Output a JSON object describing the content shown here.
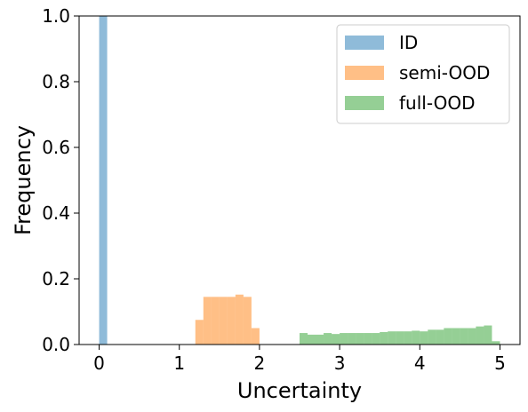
{
  "chart_data": {
    "type": "bar",
    "xlabel": "Uncertainty",
    "ylabel": "Frequency",
    "xlim": [
      -0.25,
      5.25
    ],
    "ylim": [
      0,
      1.0
    ],
    "xticks": [
      0,
      1,
      2,
      3,
      4,
      5
    ],
    "yticks": [
      0.0,
      0.2,
      0.4,
      0.6,
      0.8,
      1.0
    ],
    "xtick_labels": [
      "0",
      "1",
      "2",
      "3",
      "4",
      "5"
    ],
    "ytick_labels": [
      "0.0",
      "0.2",
      "0.4",
      "0.6",
      "0.8",
      "1.0"
    ],
    "grid": false,
    "legend_position": "top-right",
    "series": [
      {
        "name": "ID",
        "color": "#1f77b4",
        "bin_width": 0.1,
        "bins": [
          {
            "x": 0.0,
            "y": 1.0
          }
        ]
      },
      {
        "name": "semi-OOD",
        "color": "#ff7f0e",
        "bin_width": 0.1,
        "bins": [
          {
            "x": 1.2,
            "y": 0.075
          },
          {
            "x": 1.3,
            "y": 0.145
          },
          {
            "x": 1.4,
            "y": 0.145
          },
          {
            "x": 1.5,
            "y": 0.145
          },
          {
            "x": 1.6,
            "y": 0.145
          },
          {
            "x": 1.7,
            "y": 0.152
          },
          {
            "x": 1.8,
            "y": 0.145
          },
          {
            "x": 1.9,
            "y": 0.05
          }
        ]
      },
      {
        "name": "full-OOD",
        "color": "#2ca02c",
        "bin_width": 0.1,
        "bins": [
          {
            "x": 2.5,
            "y": 0.035
          },
          {
            "x": 2.6,
            "y": 0.03
          },
          {
            "x": 2.7,
            "y": 0.03
          },
          {
            "x": 2.8,
            "y": 0.035
          },
          {
            "x": 2.9,
            "y": 0.032
          },
          {
            "x": 3.0,
            "y": 0.035
          },
          {
            "x": 3.1,
            "y": 0.035
          },
          {
            "x": 3.2,
            "y": 0.035
          },
          {
            "x": 3.3,
            "y": 0.035
          },
          {
            "x": 3.4,
            "y": 0.035
          },
          {
            "x": 3.5,
            "y": 0.038
          },
          {
            "x": 3.6,
            "y": 0.04
          },
          {
            "x": 3.7,
            "y": 0.04
          },
          {
            "x": 3.8,
            "y": 0.04
          },
          {
            "x": 3.9,
            "y": 0.042
          },
          {
            "x": 4.0,
            "y": 0.04
          },
          {
            "x": 4.1,
            "y": 0.045
          },
          {
            "x": 4.2,
            "y": 0.045
          },
          {
            "x": 4.3,
            "y": 0.05
          },
          {
            "x": 4.4,
            "y": 0.05
          },
          {
            "x": 4.5,
            "y": 0.05
          },
          {
            "x": 4.6,
            "y": 0.05
          },
          {
            "x": 4.7,
            "y": 0.055
          },
          {
            "x": 4.8,
            "y": 0.058
          },
          {
            "x": 4.9,
            "y": 0.01
          }
        ]
      }
    ]
  }
}
